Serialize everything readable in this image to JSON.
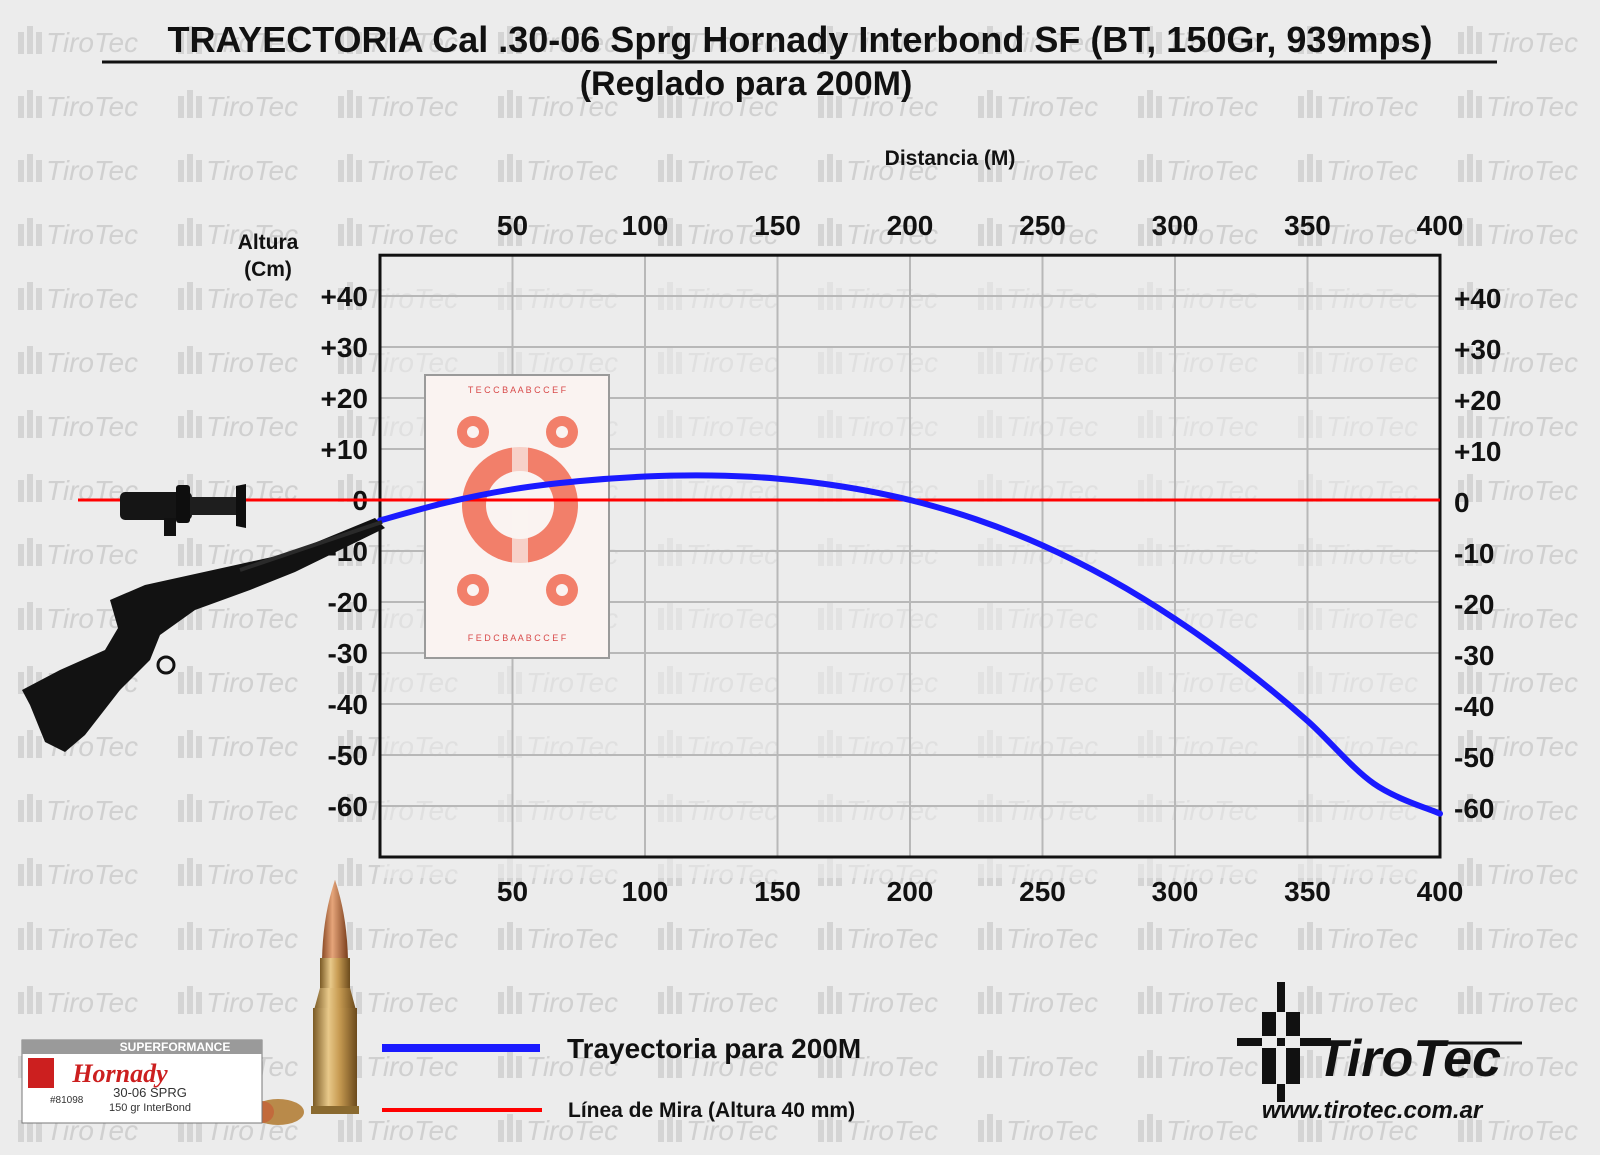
{
  "page": {
    "title": "TRAYECTORIA Cal .30-06 Sprg Hornady Interbond SF (BT, 150Gr, 939mps)",
    "subtitle": "(Reglado para 200M)",
    "watermark_text": "TiroTec"
  },
  "chart_data": {
    "type": "line",
    "xlabel": "Distancia (M)",
    "ylabel_line1": "Altura",
    "ylabel_line2": "(Cm)",
    "xlim": [
      0,
      400
    ],
    "ylim": [
      -70,
      48
    ],
    "x_ticks": [
      {
        "value": 50,
        "label": "50"
      },
      {
        "value": 100,
        "label": "100"
      },
      {
        "value": 150,
        "label": "150"
      },
      {
        "value": 200,
        "label": "200"
      },
      {
        "value": 250,
        "label": "250"
      },
      {
        "value": 300,
        "label": "300"
      },
      {
        "value": 350,
        "label": "350"
      },
      {
        "value": 400,
        "label": "400"
      }
    ],
    "y_ticks": [
      {
        "value": 40,
        "label": "+40"
      },
      {
        "value": 30,
        "label": "+30"
      },
      {
        "value": 20,
        "label": "+20"
      },
      {
        "value": 10,
        "label": "+10"
      },
      {
        "value": 0,
        "label": "0"
      },
      {
        "value": -10,
        "label": "-10"
      },
      {
        "value": -20,
        "label": "-20"
      },
      {
        "value": -30,
        "label": "-30"
      },
      {
        "value": -40,
        "label": "-40"
      },
      {
        "value": -50,
        "label": "-50"
      },
      {
        "value": -60,
        "label": "-60"
      }
    ],
    "grid": true,
    "series": [
      {
        "name": "Trayectoria para 200M",
        "color": "#1a1aff",
        "x": [
          0,
          25,
          50,
          75,
          100,
          125,
          150,
          175,
          200,
          225,
          250,
          275,
          300,
          325,
          350,
          375,
          400
        ],
        "y": [
          -4,
          -0.5,
          2.1,
          3.7,
          4.6,
          4.8,
          4.2,
          2.6,
          0,
          -3.8,
          -8.9,
          -15.4,
          -23.3,
          -32.6,
          -43.3,
          -55.6,
          -61.5
        ]
      }
    ],
    "reference_line": {
      "name": "Línea de Mira (Altura 40 mm)",
      "color": "#ff0000",
      "y": 0
    }
  },
  "legend": {
    "items": [
      {
        "label": "Trayectoria para 200M",
        "color": "#1a1aff"
      },
      {
        "label": "Línea de Mira (Altura 40 mm)",
        "color": "#ff0000"
      }
    ]
  },
  "ammo_box": {
    "line1": "SUPERFORMANCE",
    "brand": "Hornady",
    "code": "#81098",
    "caliber": "30-06 SPRG",
    "load": "150 gr InterBond"
  },
  "logo": {
    "name": "TiroTec",
    "url": "www.tirotec.com.ar"
  }
}
